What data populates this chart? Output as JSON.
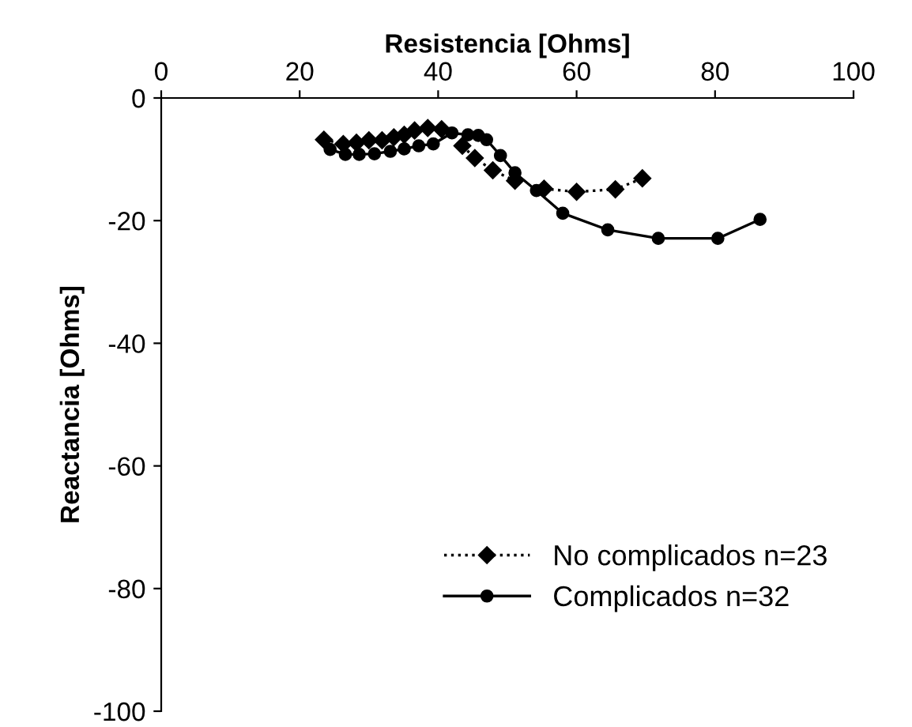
{
  "chart_data": {
    "type": "line",
    "xlabel": "Resistencia [Ohms]",
    "ylabel": "Reactancia [Ohms]",
    "xlim": [
      0,
      100
    ],
    "xticks": [
      0,
      20,
      40,
      60,
      80,
      100
    ],
    "ylim": [
      -100,
      0
    ],
    "yticks": [
      -100,
      -80,
      -60,
      -40,
      -20,
      0
    ],
    "grid": false,
    "legend": "bottom right",
    "series": [
      {
        "name": "No complicados n=23",
        "color": "#000000",
        "marker": "diamond",
        "line_style": "dotted",
        "x": [
          23.5,
          26.3,
          28.2,
          30,
          31.9,
          33.6,
          35.1,
          36.6,
          38.5,
          40.5,
          42,
          43.5,
          45.3,
          47.9,
          51.1,
          54,
          55.3,
          60,
          65.6,
          69.5
        ],
        "values": [
          -6.8,
          -7.5,
          -7.3,
          -6.9,
          -6.9,
          -6.4,
          -6,
          -5.3,
          -4.9,
          -5.1,
          null,
          -7.8,
          -9.8,
          -11.8,
          -13.5,
          null,
          -14.8,
          -15.3,
          -14.9,
          -13.1
        ]
      },
      {
        "name": "Complicados n=32",
        "color": "#000000",
        "marker": "circle",
        "line_style": "solid",
        "x": [
          24.4,
          26.6,
          28.6,
          30.8,
          33.1,
          35.1,
          37.2,
          39.3,
          42,
          44.3,
          45.8,
          47,
          49,
          51.1,
          54.2,
          58,
          64.5,
          71.8,
          80.4,
          86.5
        ],
        "values": [
          -8.4,
          -9.2,
          -9.2,
          -9.1,
          -8.7,
          -8.3,
          -7.8,
          -7.5,
          -5.7,
          -6,
          -6.1,
          -6.8,
          -9.4,
          -12.2,
          -15.1,
          -18.8,
          -21.5,
          -22.9,
          -22.9,
          -19.8
        ]
      }
    ]
  }
}
